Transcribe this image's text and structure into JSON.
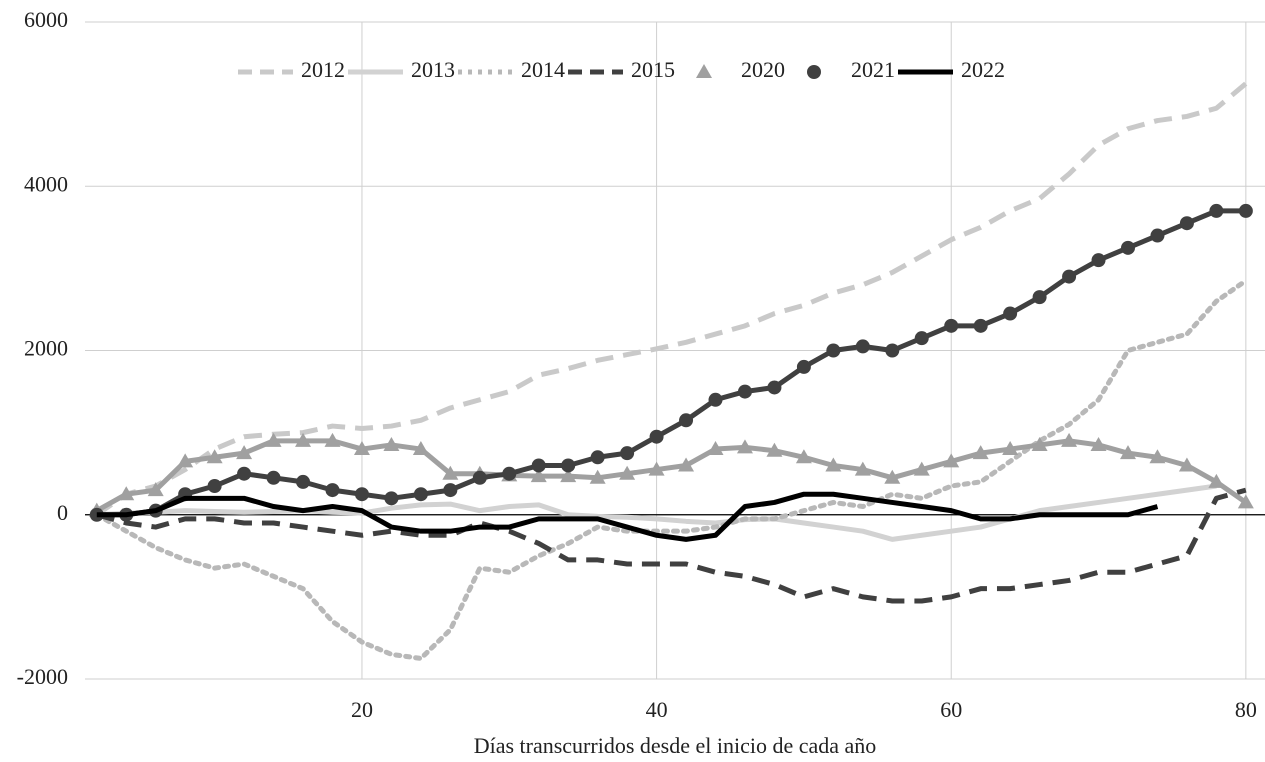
{
  "chart_data": {
    "type": "line",
    "x_label": "Días transcurridos desde el inicio de cada año",
    "x": [
      2,
      4,
      6,
      8,
      10,
      12,
      14,
      16,
      18,
      20,
      22,
      24,
      26,
      28,
      30,
      32,
      34,
      36,
      38,
      40,
      42,
      44,
      46,
      48,
      50,
      52,
      54,
      56,
      58,
      60,
      62,
      64,
      66,
      68,
      70,
      72,
      74,
      76,
      78,
      80
    ],
    "xlim": [
      1.2,
      81.3
    ],
    "xticks": [
      20,
      40,
      60,
      80
    ],
    "ylim": [
      -2000,
      6000
    ],
    "yticks": [
      -2000,
      0,
      2000,
      4000,
      6000
    ],
    "grid": true,
    "legend": "top",
    "series": [
      {
        "name": "2012",
        "color": "#c9c9c9",
        "style": "dashed",
        "values": [
          0,
          250,
          350,
          550,
          800,
          950,
          980,
          1000,
          1080,
          1050,
          1080,
          1150,
          1300,
          1400,
          1500,
          1700,
          1780,
          1880,
          1950,
          2020,
          2100,
          2200,
          2300,
          2450,
          2550,
          2700,
          2800,
          2950,
          3150,
          3350,
          3500,
          3700,
          3850,
          4150,
          4500,
          4700,
          4800,
          4850,
          4950,
          5250
        ]
      },
      {
        "name": "2013",
        "color": "#d2d2d2",
        "style": "solid",
        "values": [
          0,
          20,
          30,
          50,
          40,
          30,
          40,
          50,
          30,
          20,
          80,
          120,
          130,
          50,
          100,
          120,
          0,
          -20,
          -30,
          -50,
          -80,
          -100,
          -60,
          -50,
          -100,
          -150,
          -200,
          -300,
          -250,
          -200,
          -150,
          -50,
          50,
          100,
          150,
          200,
          250,
          300,
          350,
          null
        ]
      },
      {
        "name": "2014",
        "color": "#b8b8b8",
        "style": "dotted",
        "values": [
          0,
          -200,
          -400,
          -550,
          -650,
          -600,
          -750,
          -900,
          -1300,
          -1550,
          -1700,
          -1750,
          -1400,
          -650,
          -700,
          -500,
          -350,
          -150,
          -200,
          -200,
          -200,
          -150,
          -50,
          -50,
          50,
          150,
          100,
          250,
          200,
          350,
          400,
          650,
          900,
          1100,
          1400,
          2000,
          2100,
          2200,
          2600,
          2850
        ]
      },
      {
        "name": "2015",
        "color": "#404040",
        "style": "dashed",
        "values": [
          0,
          -100,
          -150,
          -50,
          -50,
          -100,
          -100,
          -150,
          -200,
          -250,
          -200,
          -250,
          -250,
          -100,
          -200,
          -350,
          -550,
          -550,
          -600,
          -600,
          -600,
          -700,
          -750,
          -850,
          -1000,
          -900,
          -1000,
          -1050,
          -1050,
          -1000,
          -900,
          -900,
          -850,
          -800,
          -700,
          -700,
          -600,
          -500,
          200,
          300
        ]
      },
      {
        "name": "2020",
        "color": "#a0a0a0",
        "style": "solid",
        "marker": "triangle",
        "values": [
          50,
          250,
          300,
          650,
          700,
          750,
          900,
          900,
          900,
          800,
          850,
          800,
          500,
          500,
          480,
          470,
          470,
          450,
          500,
          550,
          600,
          800,
          820,
          780,
          700,
          600,
          550,
          450,
          550,
          650,
          750,
          800,
          850,
          900,
          850,
          750,
          700,
          600,
          400,
          150
        ]
      },
      {
        "name": "2021",
        "color": "#404040",
        "style": "solid",
        "marker": "circle",
        "values": [
          0,
          0,
          50,
          250,
          350,
          500,
          450,
          400,
          300,
          250,
          200,
          250,
          300,
          450,
          500,
          600,
          600,
          700,
          750,
          950,
          1150,
          1400,
          1500,
          1550,
          1800,
          2000,
          2050,
          2000,
          2150,
          2300,
          2300,
          2450,
          2650,
          2900,
          3100,
          3250,
          3400,
          3550,
          3700,
          3700
        ]
      },
      {
        "name": "2022",
        "color": "#000000",
        "style": "solid",
        "values": [
          0,
          0,
          50,
          200,
          200,
          200,
          100,
          50,
          100,
          50,
          -150,
          -200,
          -200,
          -150,
          -150,
          -50,
          -50,
          -50,
          -150,
          -250,
          -300,
          -250,
          100,
          150,
          250,
          250,
          200,
          150,
          100,
          50,
          -50,
          -50,
          0,
          0,
          0,
          0,
          100,
          null,
          null,
          null
        ]
      }
    ]
  }
}
